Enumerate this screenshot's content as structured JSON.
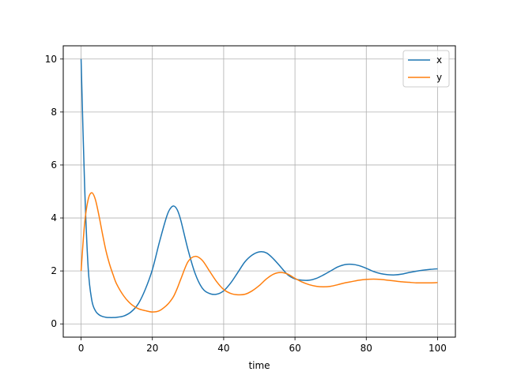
{
  "chart_data": {
    "type": "line",
    "title": "",
    "xlabel": "time",
    "ylabel": "",
    "xlim": [
      -5,
      105
    ],
    "ylim": [
      -0.5,
      10.5
    ],
    "xticks": [
      0,
      20,
      40,
      60,
      80,
      100
    ],
    "yticks": [
      0,
      2,
      4,
      6,
      8,
      10
    ],
    "grid": true,
    "legend_position": "top-right",
    "x": [
      0,
      1,
      2,
      3,
      4,
      5,
      6,
      7,
      8,
      9,
      10,
      12,
      14,
      16,
      18,
      20,
      22,
      24,
      25,
      26,
      27,
      28,
      30,
      32,
      34,
      36,
      38,
      40,
      42,
      44,
      46,
      48,
      50,
      52,
      54,
      56,
      58,
      60,
      62,
      64,
      66,
      68,
      70,
      72,
      74,
      76,
      78,
      80,
      82,
      84,
      86,
      88,
      90,
      92,
      94,
      96,
      98,
      100
    ],
    "series": [
      {
        "name": "x",
        "color": "#1f77b4",
        "values": [
          10,
          5.2,
          2.1,
          0.9,
          0.5,
          0.35,
          0.28,
          0.25,
          0.24,
          0.24,
          0.25,
          0.3,
          0.45,
          0.75,
          1.3,
          2.05,
          3.1,
          4.05,
          4.35,
          4.45,
          4.3,
          3.9,
          2.8,
          1.9,
          1.35,
          1.15,
          1.12,
          1.25,
          1.55,
          1.95,
          2.35,
          2.6,
          2.72,
          2.68,
          2.45,
          2.15,
          1.85,
          1.7,
          1.65,
          1.65,
          1.72,
          1.85,
          2.0,
          2.15,
          2.24,
          2.25,
          2.2,
          2.1,
          1.98,
          1.9,
          1.86,
          1.85,
          1.88,
          1.94,
          1.99,
          2.03,
          2.06,
          2.08
        ]
      },
      {
        "name": "y",
        "color": "#ff7f0e",
        "values": [
          2,
          3.8,
          4.7,
          4.95,
          4.7,
          4.1,
          3.4,
          2.75,
          2.25,
          1.85,
          1.5,
          1.05,
          0.75,
          0.58,
          0.5,
          0.45,
          0.5,
          0.7,
          0.85,
          1.05,
          1.35,
          1.7,
          2.35,
          2.55,
          2.4,
          2.0,
          1.6,
          1.3,
          1.15,
          1.1,
          1.12,
          1.25,
          1.45,
          1.7,
          1.88,
          1.94,
          1.88,
          1.72,
          1.58,
          1.48,
          1.42,
          1.4,
          1.42,
          1.48,
          1.55,
          1.6,
          1.65,
          1.68,
          1.69,
          1.68,
          1.65,
          1.62,
          1.59,
          1.57,
          1.55,
          1.55,
          1.55,
          1.56
        ]
      }
    ]
  }
}
